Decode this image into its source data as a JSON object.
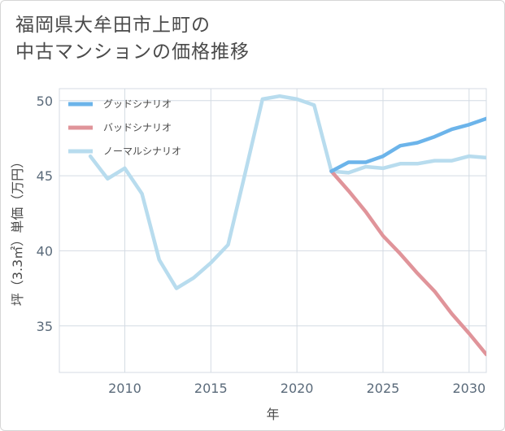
{
  "title": {
    "line1": "福岡県大牟田市上町の",
    "line2": "中古マンションの価格推移"
  },
  "chart_data": {
    "type": "line",
    "xlabel": "年",
    "ylabel": "坪（3.3㎡）単価（万円）",
    "xlim": [
      2006.2,
      2031
    ],
    "ylim": [
      31.9,
      50.8
    ],
    "xticks": [
      2010,
      2015,
      2020,
      2025,
      2030
    ],
    "yticks": [
      35,
      40,
      45,
      50
    ],
    "grid": true,
    "legend_position": "top-left",
    "series": [
      {
        "name": "グッドシナリオ",
        "color": "#6cb4ea",
        "x": [
          2022,
          2023,
          2024,
          2025,
          2026,
          2027,
          2028,
          2029,
          2030,
          2031
        ],
        "y": [
          45.3,
          45.9,
          45.9,
          46.3,
          47.0,
          47.2,
          47.6,
          48.1,
          48.4,
          48.8
        ]
      },
      {
        "name": "バッドシナリオ",
        "color": "#e0949a",
        "x": [
          2022,
          2023,
          2024,
          2025,
          2026,
          2027,
          2028,
          2029,
          2030,
          2031
        ],
        "y": [
          45.3,
          44.0,
          42.6,
          41.0,
          39.8,
          38.5,
          37.3,
          35.8,
          34.5,
          33.1
        ]
      },
      {
        "name": "ノーマルシナリオ",
        "color": "#b8dcee",
        "x": [
          2008,
          2009,
          2010,
          2011,
          2012,
          2013,
          2014,
          2015,
          2016,
          2017,
          2018,
          2019,
          2020,
          2021,
          2022,
          2023,
          2024,
          2025,
          2026,
          2027,
          2028,
          2029,
          2030,
          2031
        ],
        "y": [
          46.3,
          44.8,
          45.5,
          43.8,
          39.4,
          37.5,
          38.2,
          39.2,
          40.4,
          45.2,
          50.1,
          50.3,
          50.1,
          49.7,
          45.3,
          45.2,
          45.6,
          45.5,
          45.8,
          45.8,
          46.0,
          46.0,
          46.3,
          46.2
        ]
      }
    ]
  }
}
